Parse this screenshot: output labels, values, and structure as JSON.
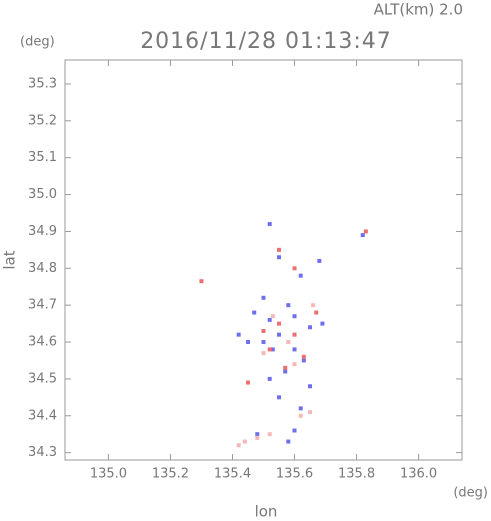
{
  "chart_data": {
    "type": "scatter",
    "title": "2016/11/28 01:13:47",
    "subtitle": "ALT(km) 2.0",
    "y_unit": "(deg)",
    "x_unit": "(deg)",
    "x_label": "lon",
    "y_label": "lat",
    "xlim": [
      134.86,
      136.14
    ],
    "ylim": [
      34.28,
      35.365
    ],
    "xticks": [
      {
        "value": 135,
        "label": "135.0"
      },
      135.2,
      135.4,
      135.6,
      135.8,
      {
        "value": 136,
        "label": "136.0"
      }
    ],
    "yticks": [
      34.3,
      34.4,
      34.5,
      34.6,
      34.7,
      34.8,
      34.9,
      {
        "value": 35,
        "label": "35.0"
      },
      35.1,
      35.2,
      35.3
    ],
    "series": [
      {
        "name": "blue",
        "color": "#6f6fee",
        "x": [
          135.52,
          135.55,
          135.62,
          135.68,
          135.82,
          135.5,
          135.58,
          135.47,
          135.52,
          135.6,
          135.65,
          135.55,
          135.5,
          135.6,
          135.63,
          135.57,
          135.45,
          135.42,
          135.52,
          135.65,
          135.69,
          135.55,
          135.62,
          135.48,
          135.6,
          135.58,
          135.53
        ],
        "y": [
          34.92,
          34.83,
          34.78,
          34.82,
          34.89,
          34.72,
          34.7,
          34.68,
          34.66,
          34.67,
          34.64,
          34.62,
          34.6,
          34.58,
          34.55,
          34.52,
          34.6,
          34.62,
          34.5,
          34.48,
          34.65,
          34.45,
          34.42,
          34.35,
          34.36,
          34.33,
          34.58
        ]
      },
      {
        "name": "red",
        "color": "#ee6f6f",
        "x": [
          135.83,
          135.55,
          135.6,
          135.3,
          135.67,
          135.55,
          135.6,
          135.52,
          135.63,
          135.57,
          135.5,
          135.45
        ],
        "y": [
          34.9,
          34.85,
          34.8,
          34.765,
          34.68,
          34.65,
          34.62,
          34.58,
          34.56,
          34.53,
          34.63,
          34.49
        ]
      },
      {
        "name": "pink",
        "color": "#f4b8b8",
        "x": [
          135.65,
          135.62,
          135.44,
          135.48,
          135.52,
          135.42,
          135.58,
          135.53,
          135.6,
          135.5,
          135.66
        ],
        "y": [
          34.41,
          34.4,
          34.33,
          34.34,
          34.35,
          34.32,
          34.6,
          34.67,
          34.54,
          34.57,
          34.7
        ]
      }
    ]
  }
}
